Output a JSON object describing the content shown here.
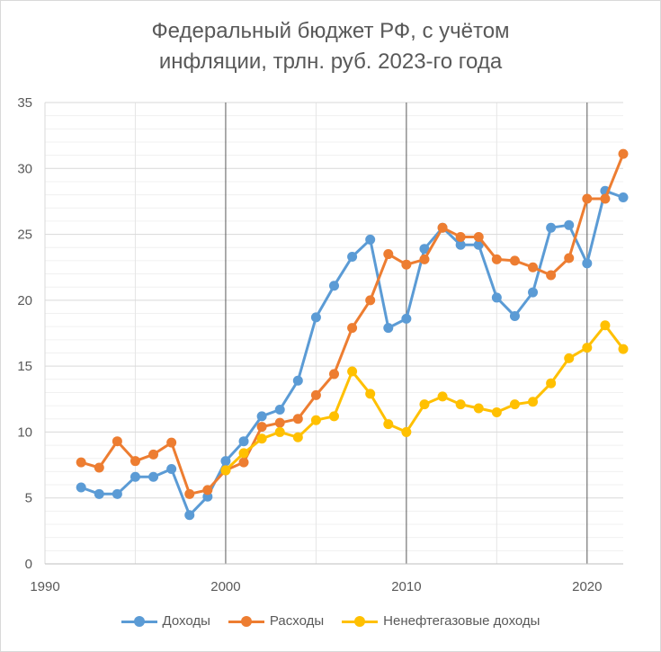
{
  "chart_data": {
    "type": "line",
    "title": [
      "Федеральный бюджет РФ, с учётом",
      "инфляции, трлн. руб. 2023-го года"
    ],
    "xlim": [
      1990,
      2022
    ],
    "ylim": [
      0,
      35
    ],
    "x_ticks": [
      1990,
      2000,
      2010,
      2020
    ],
    "y_ticks": [
      0,
      5,
      10,
      15,
      20,
      25,
      30,
      35
    ],
    "grid": true,
    "legend_position": "bottom",
    "series": [
      {
        "name": "Доходы",
        "color": "#5b9bd5",
        "x": [
          1992,
          1993,
          1994,
          1995,
          1996,
          1997,
          1998,
          1999,
          2000,
          2001,
          2002,
          2003,
          2004,
          2005,
          2006,
          2007,
          2008,
          2009,
          2010,
          2011,
          2012,
          2013,
          2014,
          2015,
          2016,
          2017,
          2018,
          2019,
          2020,
          2021,
          2022
        ],
        "values": [
          5.8,
          5.3,
          5.3,
          6.6,
          6.6,
          7.2,
          3.7,
          5.1,
          7.8,
          9.3,
          11.2,
          11.7,
          13.9,
          18.7,
          21.1,
          23.3,
          24.6,
          17.9,
          18.6,
          23.9,
          25.5,
          24.2,
          24.2,
          20.2,
          18.8,
          20.6,
          25.5,
          25.7,
          22.8,
          28.3,
          27.8
        ]
      },
      {
        "name": "Расходы",
        "color": "#ed7d31",
        "x": [
          1992,
          1993,
          1994,
          1995,
          1996,
          1997,
          1998,
          1999,
          2000,
          2001,
          2002,
          2003,
          2004,
          2005,
          2006,
          2007,
          2008,
          2009,
          2010,
          2011,
          2012,
          2013,
          2014,
          2015,
          2016,
          2017,
          2018,
          2019,
          2020,
          2021,
          2022
        ],
        "values": [
          7.7,
          7.3,
          9.3,
          7.8,
          8.3,
          9.2,
          5.3,
          5.6,
          7.1,
          7.7,
          10.4,
          10.7,
          11.0,
          12.8,
          14.4,
          17.9,
          20.0,
          23.5,
          22.7,
          23.1,
          25.5,
          24.8,
          24.8,
          23.1,
          23.0,
          22.5,
          21.9,
          23.2,
          27.7,
          27.7,
          31.1
        ]
      },
      {
        "name": "Ненефтегазовые доходы",
        "color": "#ffc000",
        "x": [
          2000,
          2001,
          2002,
          2003,
          2004,
          2005,
          2006,
          2007,
          2008,
          2009,
          2010,
          2011,
          2012,
          2013,
          2014,
          2015,
          2016,
          2017,
          2018,
          2019,
          2020,
          2021,
          2022
        ],
        "values": [
          7.1,
          8.4,
          9.5,
          10.0,
          9.6,
          10.9,
          11.2,
          14.6,
          12.9,
          10.6,
          10.0,
          12.1,
          12.7,
          12.1,
          11.8,
          11.5,
          12.1,
          12.3,
          13.7,
          15.6,
          16.4,
          18.1,
          16.3
        ]
      }
    ]
  }
}
